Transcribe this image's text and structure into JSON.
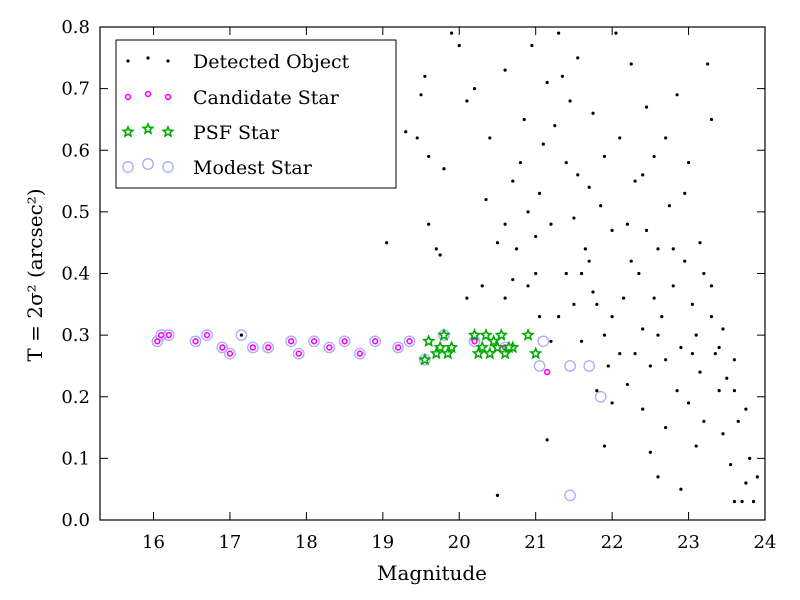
{
  "chart_data": {
    "type": "scatter",
    "xlabel": "Magnitude",
    "ylabel": "T = 2σ² (arcsec²)",
    "xlim": [
      15.3,
      24
    ],
    "ylim": [
      0,
      0.8
    ],
    "xticks": [
      "16",
      "17",
      "18",
      "19",
      "20",
      "21",
      "22",
      "23",
      "24"
    ],
    "yticks": [
      "0.0",
      "0.1",
      "0.2",
      "0.3",
      "0.4",
      "0.5",
      "0.6",
      "0.7",
      "0.8"
    ],
    "legend_position": "top-left",
    "series": [
      {
        "name": "Detected Object",
        "marker": "dot",
        "color": "#000000",
        "points": [
          [
            17.15,
            0.3
          ],
          [
            19.05,
            0.45
          ],
          [
            19.7,
            0.44
          ],
          [
            19.75,
            0.43
          ],
          [
            19.3,
            0.63
          ],
          [
            19.45,
            0.62
          ],
          [
            19.6,
            0.59
          ],
          [
            19.8,
            0.57
          ],
          [
            19.6,
            0.48
          ],
          [
            19.5,
            0.69
          ],
          [
            19.9,
            0.79
          ],
          [
            20.0,
            0.77
          ],
          [
            20.1,
            0.68
          ],
          [
            20.2,
            0.7
          ],
          [
            20.35,
            0.52
          ],
          [
            20.5,
            0.45
          ],
          [
            20.6,
            0.48
          ],
          [
            20.75,
            0.44
          ],
          [
            20.8,
            0.58
          ],
          [
            20.9,
            0.5
          ],
          [
            21.0,
            0.46
          ],
          [
            21.05,
            0.53
          ],
          [
            21.1,
            0.61
          ],
          [
            21.15,
            0.71
          ],
          [
            21.25,
            0.64
          ],
          [
            21.35,
            0.72
          ],
          [
            21.4,
            0.58
          ],
          [
            21.5,
            0.49
          ],
          [
            21.55,
            0.75
          ],
          [
            21.6,
            0.4
          ],
          [
            21.7,
            0.54
          ],
          [
            21.75,
            0.66
          ],
          [
            21.8,
            0.35
          ],
          [
            21.9,
            0.3
          ],
          [
            21.95,
            0.25
          ],
          [
            22.0,
            0.47
          ],
          [
            22.05,
            0.79
          ],
          [
            22.1,
            0.62
          ],
          [
            22.15,
            0.36
          ],
          [
            22.2,
            0.22
          ],
          [
            22.25,
            0.74
          ],
          [
            22.3,
            0.55
          ],
          [
            22.35,
            0.4
          ],
          [
            22.4,
            0.31
          ],
          [
            22.45,
            0.67
          ],
          [
            22.5,
            0.25
          ],
          [
            22.55,
            0.59
          ],
          [
            22.6,
            0.44
          ],
          [
            22.65,
            0.33
          ],
          [
            22.7,
            0.15
          ],
          [
            22.75,
            0.51
          ],
          [
            22.8,
            0.38
          ],
          [
            22.85,
            0.69
          ],
          [
            22.9,
            0.28
          ],
          [
            22.95,
            0.42
          ],
          [
            23.0,
            0.19
          ],
          [
            23.05,
            0.35
          ],
          [
            23.1,
            0.3
          ],
          [
            23.15,
            0.24
          ],
          [
            23.2,
            0.4
          ],
          [
            23.25,
            0.74
          ],
          [
            23.3,
            0.33
          ],
          [
            23.35,
            0.27
          ],
          [
            23.4,
            0.21
          ],
          [
            23.45,
            0.14
          ],
          [
            23.5,
            0.23
          ],
          [
            23.55,
            0.09
          ],
          [
            23.6,
            0.03
          ],
          [
            23.65,
            0.16
          ],
          [
            23.7,
            0.03
          ],
          [
            23.75,
            0.06
          ],
          [
            23.8,
            0.1
          ],
          [
            23.85,
            0.03
          ],
          [
            23.9,
            0.07
          ],
          [
            23.3,
            0.65
          ],
          [
            23.0,
            0.58
          ],
          [
            22.9,
            0.05
          ],
          [
            22.6,
            0.07
          ],
          [
            21.15,
            0.13
          ],
          [
            20.5,
            0.04
          ],
          [
            21.4,
            0.4
          ],
          [
            21.5,
            0.35
          ],
          [
            21.6,
            0.29
          ],
          [
            21.7,
            0.42
          ],
          [
            21.3,
            0.33
          ],
          [
            21.2,
            0.29
          ],
          [
            20.9,
            0.38
          ],
          [
            20.7,
            0.39
          ],
          [
            20.3,
            0.38
          ],
          [
            20.1,
            0.36
          ],
          [
            19.55,
            0.72
          ],
          [
            22.6,
            0.3
          ],
          [
            22.7,
            0.26
          ],
          [
            22.0,
            0.19
          ],
          [
            21.9,
            0.12
          ],
          [
            22.5,
            0.11
          ],
          [
            23.1,
            0.12
          ],
          [
            22.4,
            0.18
          ],
          [
            23.6,
            0.21
          ],
          [
            23.2,
            0.16
          ],
          [
            21.8,
            0.21
          ],
          [
            22.3,
            0.27
          ],
          [
            22.0,
            0.33
          ],
          [
            21.65,
            0.44
          ],
          [
            21.0,
            0.4
          ],
          [
            20.7,
            0.55
          ],
          [
            20.4,
            0.62
          ],
          [
            20.6,
            0.73
          ],
          [
            20.95,
            0.77
          ],
          [
            21.3,
            0.79
          ],
          [
            21.45,
            0.68
          ],
          [
            21.9,
            0.59
          ],
          [
            22.2,
            0.48
          ],
          [
            22.4,
            0.56
          ],
          [
            22.7,
            0.62
          ],
          [
            22.95,
            0.53
          ],
          [
            23.15,
            0.45
          ],
          [
            23.3,
            0.38
          ],
          [
            23.45,
            0.31
          ],
          [
            23.6,
            0.26
          ],
          [
            23.75,
            0.18
          ],
          [
            22.85,
            0.21
          ],
          [
            22.55,
            0.36
          ],
          [
            22.25,
            0.42
          ],
          [
            21.85,
            0.51
          ],
          [
            21.55,
            0.56
          ],
          [
            21.2,
            0.48
          ],
          [
            20.85,
            0.65
          ],
          [
            20.6,
            0.36
          ],
          [
            21.05,
            0.33
          ],
          [
            21.75,
            0.37
          ],
          [
            22.1,
            0.27
          ],
          [
            22.45,
            0.47
          ],
          [
            22.8,
            0.44
          ],
          [
            23.05,
            0.27
          ],
          [
            23.4,
            0.28
          ]
        ]
      },
      {
        "name": "Candidate Star",
        "marker": "circle",
        "color": "#ff00ff",
        "points": [
          [
            16.05,
            0.29
          ],
          [
            16.1,
            0.3
          ],
          [
            16.2,
            0.3
          ],
          [
            16.55,
            0.29
          ],
          [
            16.7,
            0.3
          ],
          [
            16.9,
            0.28
          ],
          [
            17.0,
            0.27
          ],
          [
            17.3,
            0.28
          ],
          [
            17.5,
            0.28
          ],
          [
            17.8,
            0.29
          ],
          [
            17.9,
            0.27
          ],
          [
            18.1,
            0.29
          ],
          [
            18.3,
            0.28
          ],
          [
            18.5,
            0.29
          ],
          [
            18.7,
            0.27
          ],
          [
            18.9,
            0.29
          ],
          [
            19.2,
            0.28
          ],
          [
            19.35,
            0.29
          ],
          [
            20.2,
            0.29
          ],
          [
            20.6,
            0.28
          ],
          [
            21.15,
            0.24
          ]
        ]
      },
      {
        "name": "PSF Star",
        "marker": "star",
        "color": "#00aa00",
        "points": [
          [
            19.55,
            0.26
          ],
          [
            19.6,
            0.29
          ],
          [
            19.7,
            0.27
          ],
          [
            19.75,
            0.28
          ],
          [
            19.8,
            0.3
          ],
          [
            19.85,
            0.27
          ],
          [
            19.9,
            0.28
          ],
          [
            20.2,
            0.3
          ],
          [
            20.3,
            0.28
          ],
          [
            20.35,
            0.3
          ],
          [
            20.4,
            0.27
          ],
          [
            20.45,
            0.29
          ],
          [
            20.5,
            0.28
          ],
          [
            20.55,
            0.3
          ],
          [
            20.6,
            0.27
          ],
          [
            20.7,
            0.28
          ],
          [
            20.9,
            0.3
          ],
          [
            21.0,
            0.27
          ],
          [
            20.25,
            0.27
          ],
          [
            20.65,
            0.28
          ]
        ]
      },
      {
        "name": "Modest Star",
        "marker": "open-circle",
        "color": "#aaaaff",
        "points": [
          [
            16.05,
            0.29
          ],
          [
            16.1,
            0.3
          ],
          [
            16.2,
            0.3
          ],
          [
            16.55,
            0.29
          ],
          [
            16.7,
            0.3
          ],
          [
            16.9,
            0.28
          ],
          [
            17.0,
            0.27
          ],
          [
            17.15,
            0.3
          ],
          [
            17.3,
            0.28
          ],
          [
            17.5,
            0.28
          ],
          [
            17.8,
            0.29
          ],
          [
            17.9,
            0.27
          ],
          [
            18.1,
            0.29
          ],
          [
            18.3,
            0.28
          ],
          [
            18.5,
            0.29
          ],
          [
            18.7,
            0.27
          ],
          [
            18.9,
            0.29
          ],
          [
            19.2,
            0.28
          ],
          [
            19.35,
            0.29
          ],
          [
            19.55,
            0.26
          ],
          [
            19.8,
            0.3
          ],
          [
            20.2,
            0.29
          ],
          [
            20.6,
            0.28
          ],
          [
            21.1,
            0.29
          ],
          [
            21.05,
            0.25
          ],
          [
            21.45,
            0.25
          ],
          [
            21.7,
            0.25
          ],
          [
            21.85,
            0.2
          ],
          [
            21.45,
            0.04
          ]
        ]
      }
    ]
  }
}
